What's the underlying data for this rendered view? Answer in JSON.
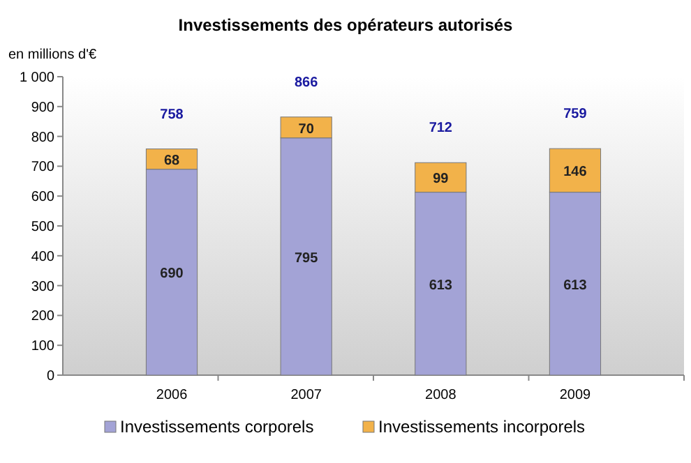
{
  "chart_data": {
    "type": "bar",
    "title": "Investissements des opérateurs autorisés",
    "ylabel": "en millions d'€",
    "categories": [
      "2006",
      "2007",
      "2008",
      "2009"
    ],
    "stacked": true,
    "series": [
      {
        "name": "Investissements corporels",
        "color": "#a3a3d6",
        "values": [
          690,
          795,
          613,
          613
        ]
      },
      {
        "name": "Investissements incorporels",
        "color": "#f2b24a",
        "values": [
          68,
          70,
          99,
          146
        ]
      }
    ],
    "ylim": [
      0,
      1000
    ],
    "yticks": [
      0,
      100,
      200,
      300,
      400,
      500,
      600,
      700,
      800,
      900,
      {
        "value": 1000,
        "label": "1 000"
      }
    ],
    "data_labels": true,
    "totals": [
      "758",
      "866",
      "712",
      "759"
    ],
    "legend": "bottom",
    "grid": false
  }
}
